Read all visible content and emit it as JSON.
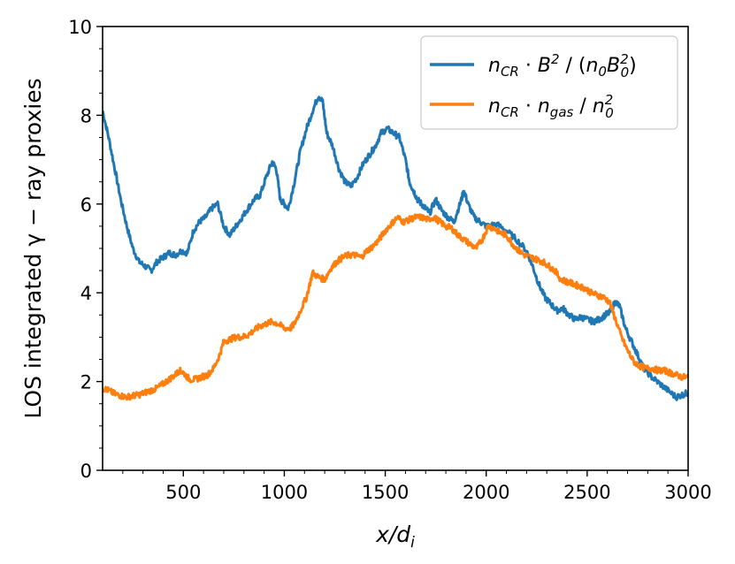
{
  "chart_data": {
    "type": "line",
    "title": "",
    "xlabel_main": "x",
    "xlabel_sub": "i",
    "xlabel_text": "x/d_i",
    "ylabel": "LOS integrated γ − ray proxies",
    "xlim": [
      100,
      3000
    ],
    "ylim": [
      0,
      10
    ],
    "xticks": [
      500,
      1000,
      1500,
      2000,
      2500,
      3000
    ],
    "yticks": [
      0,
      2,
      4,
      6,
      8,
      10
    ],
    "legend_position": "top-right",
    "series": [
      {
        "name": "n_CR · B^2 / (n_0 B_0^2)",
        "color": "#1f77b4",
        "points": [
          [
            100,
            8.1
          ],
          [
            130,
            7.5
          ],
          [
            160,
            6.8
          ],
          [
            190,
            6.1
          ],
          [
            220,
            5.5
          ],
          [
            250,
            5.0
          ],
          [
            280,
            4.7
          ],
          [
            310,
            4.6
          ],
          [
            340,
            4.5
          ],
          [
            370,
            4.7
          ],
          [
            400,
            4.8
          ],
          [
            430,
            4.9
          ],
          [
            460,
            4.85
          ],
          [
            490,
            4.95
          ],
          [
            520,
            4.9
          ],
          [
            550,
            5.4
          ],
          [
            580,
            5.6
          ],
          [
            610,
            5.7
          ],
          [
            640,
            5.9
          ],
          [
            670,
            6.0
          ],
          [
            700,
            5.5
          ],
          [
            730,
            5.3
          ],
          [
            760,
            5.5
          ],
          [
            790,
            5.7
          ],
          [
            820,
            5.9
          ],
          [
            850,
            6.1
          ],
          [
            880,
            6.2
          ],
          [
            910,
            6.6
          ],
          [
            940,
            6.95
          ],
          [
            960,
            6.8
          ],
          [
            980,
            6.1
          ],
          [
            1000,
            6.0
          ],
          [
            1020,
            5.9
          ],
          [
            1050,
            6.5
          ],
          [
            1080,
            7.2
          ],
          [
            1110,
            7.7
          ],
          [
            1140,
            8.1
          ],
          [
            1170,
            8.45
          ],
          [
            1190,
            8.3
          ],
          [
            1210,
            7.6
          ],
          [
            1240,
            7.3
          ],
          [
            1270,
            6.8
          ],
          [
            1300,
            6.5
          ],
          [
            1330,
            6.4
          ],
          [
            1360,
            6.6
          ],
          [
            1390,
            6.9
          ],
          [
            1420,
            7.1
          ],
          [
            1450,
            7.3
          ],
          [
            1480,
            7.6
          ],
          [
            1510,
            7.7
          ],
          [
            1540,
            7.6
          ],
          [
            1570,
            7.5
          ],
          [
            1600,
            7.0
          ],
          [
            1620,
            6.5
          ],
          [
            1640,
            6.3
          ],
          [
            1660,
            6.1
          ],
          [
            1680,
            6.0
          ],
          [
            1700,
            5.9
          ],
          [
            1720,
            5.8
          ],
          [
            1750,
            6.1
          ],
          [
            1780,
            5.85
          ],
          [
            1810,
            5.7
          ],
          [
            1840,
            5.6
          ],
          [
            1870,
            6.0
          ],
          [
            1890,
            6.3
          ],
          [
            1910,
            6.0
          ],
          [
            1940,
            5.7
          ],
          [
            1970,
            5.6
          ],
          [
            2000,
            5.5
          ],
          [
            2050,
            5.55
          ],
          [
            2100,
            5.4
          ],
          [
            2150,
            5.2
          ],
          [
            2200,
            4.95
          ],
          [
            2230,
            4.6
          ],
          [
            2260,
            4.2
          ],
          [
            2290,
            3.9
          ],
          [
            2320,
            3.75
          ],
          [
            2350,
            3.6
          ],
          [
            2380,
            3.65
          ],
          [
            2410,
            3.5
          ],
          [
            2440,
            3.4
          ],
          [
            2470,
            3.45
          ],
          [
            2500,
            3.4
          ],
          [
            2530,
            3.35
          ],
          [
            2560,
            3.4
          ],
          [
            2590,
            3.5
          ],
          [
            2610,
            3.55
          ],
          [
            2640,
            3.8
          ],
          [
            2660,
            3.7
          ],
          [
            2690,
            3.2
          ],
          [
            2720,
            2.9
          ],
          [
            2750,
            2.6
          ],
          [
            2780,
            2.3
          ],
          [
            2820,
            2.1
          ],
          [
            2860,
            1.95
          ],
          [
            2900,
            1.8
          ],
          [
            2940,
            1.65
          ],
          [
            2970,
            1.7
          ],
          [
            3000,
            1.75
          ]
        ]
      },
      {
        "name": "n_CR · n_gas / n_0^2",
        "color": "#ff7f0e",
        "points": [
          [
            100,
            1.85
          ],
          [
            130,
            1.8
          ],
          [
            160,
            1.72
          ],
          [
            190,
            1.68
          ],
          [
            220,
            1.65
          ],
          [
            250,
            1.68
          ],
          [
            280,
            1.7
          ],
          [
            310,
            1.75
          ],
          [
            340,
            1.8
          ],
          [
            370,
            1.85
          ],
          [
            400,
            1.95
          ],
          [
            430,
            2.05
          ],
          [
            460,
            2.15
          ],
          [
            480,
            2.25
          ],
          [
            500,
            2.2
          ],
          [
            530,
            2.05
          ],
          [
            560,
            2.05
          ],
          [
            590,
            2.1
          ],
          [
            620,
            2.15
          ],
          [
            650,
            2.3
          ],
          [
            680,
            2.6
          ],
          [
            700,
            2.9
          ],
          [
            730,
            2.95
          ],
          [
            760,
            3.0
          ],
          [
            790,
            3.0
          ],
          [
            820,
            3.05
          ],
          [
            850,
            3.15
          ],
          [
            880,
            3.25
          ],
          [
            910,
            3.3
          ],
          [
            940,
            3.35
          ],
          [
            970,
            3.3
          ],
          [
            1000,
            3.2
          ],
          [
            1030,
            3.2
          ],
          [
            1050,
            3.3
          ],
          [
            1080,
            3.6
          ],
          [
            1110,
            3.9
          ],
          [
            1140,
            4.45
          ],
          [
            1170,
            4.35
          ],
          [
            1200,
            4.3
          ],
          [
            1230,
            4.55
          ],
          [
            1260,
            4.7
          ],
          [
            1290,
            4.8
          ],
          [
            1320,
            4.85
          ],
          [
            1350,
            4.85
          ],
          [
            1380,
            4.8
          ],
          [
            1410,
            4.95
          ],
          [
            1440,
            5.05
          ],
          [
            1470,
            5.2
          ],
          [
            1500,
            5.4
          ],
          [
            1530,
            5.55
          ],
          [
            1560,
            5.7
          ],
          [
            1590,
            5.6
          ],
          [
            1620,
            5.65
          ],
          [
            1650,
            5.7
          ],
          [
            1680,
            5.7
          ],
          [
            1710,
            5.65
          ],
          [
            1740,
            5.7
          ],
          [
            1770,
            5.6
          ],
          [
            1800,
            5.5
          ],
          [
            1830,
            5.45
          ],
          [
            1860,
            5.3
          ],
          [
            1890,
            5.2
          ],
          [
            1920,
            5.1
          ],
          [
            1950,
            5.0
          ],
          [
            1980,
            5.2
          ],
          [
            2010,
            5.5
          ],
          [
            2040,
            5.45
          ],
          [
            2070,
            5.35
          ],
          [
            2100,
            5.3
          ],
          [
            2130,
            5.1
          ],
          [
            2160,
            4.95
          ],
          [
            2190,
            4.85
          ],
          [
            2220,
            4.8
          ],
          [
            2250,
            4.75
          ],
          [
            2280,
            4.7
          ],
          [
            2310,
            4.6
          ],
          [
            2340,
            4.5
          ],
          [
            2370,
            4.3
          ],
          [
            2400,
            4.25
          ],
          [
            2430,
            4.2
          ],
          [
            2460,
            4.15
          ],
          [
            2490,
            4.1
          ],
          [
            2520,
            4.0
          ],
          [
            2550,
            3.95
          ],
          [
            2580,
            3.9
          ],
          [
            2610,
            3.8
          ],
          [
            2640,
            3.4
          ],
          [
            2670,
            3.0
          ],
          [
            2700,
            2.7
          ],
          [
            2730,
            2.45
          ],
          [
            2760,
            2.35
          ],
          [
            2790,
            2.3
          ],
          [
            2820,
            2.3
          ],
          [
            2850,
            2.25
          ],
          [
            2880,
            2.25
          ],
          [
            2910,
            2.2
          ],
          [
            2940,
            2.15
          ],
          [
            2970,
            2.1
          ],
          [
            3000,
            2.1
          ]
        ]
      }
    ]
  }
}
